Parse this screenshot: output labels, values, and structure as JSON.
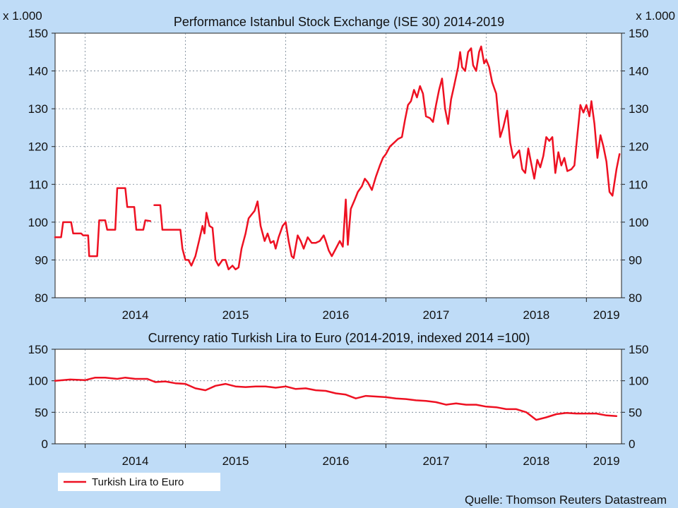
{
  "chart_data": [
    {
      "type": "line",
      "title": "Performance Istanbul Stock Exchange (ISE 30) 2014-2019",
      "unit_label_left": "x 1.000",
      "unit_label_right": "x 1.000",
      "ylim": [
        80,
        150
      ],
      "yticks": [
        "80",
        "90",
        "100",
        "110",
        "120",
        "130",
        "140",
        "150"
      ],
      "xticks": [
        "2014",
        "2015",
        "2016",
        "2017",
        "2018",
        "2019"
      ],
      "xlim": [
        2013.7,
        2019.35
      ],
      "grid": true,
      "color": "#ee1122",
      "series": [
        {
          "segments": [
            [
              [
                2013.7,
                96
              ],
              [
                2013.76,
                96
              ],
              [
                2013.78,
                100
              ],
              [
                2013.86,
                100
              ],
              [
                2013.88,
                97
              ],
              [
                2013.96,
                97
              ],
              [
                2013.98,
                96.5
              ],
              [
                2014.03,
                96.5
              ],
              [
                2014.04,
                91
              ],
              [
                2014.12,
                91
              ],
              [
                2014.14,
                100.5
              ],
              [
                2014.2,
                100.5
              ],
              [
                2014.22,
                98
              ],
              [
                2014.3,
                98
              ],
              [
                2014.32,
                109
              ],
              [
                2014.4,
                109
              ],
              [
                2014.42,
                104
              ],
              [
                2014.49,
                104
              ],
              [
                2014.51,
                98
              ],
              [
                2014.58,
                98
              ],
              [
                2014.6,
                100.5
              ],
              [
                2014.65,
                100.3
              ]
            ],
            [
              [
                2014.69,
                104.5
              ],
              [
                2014.75,
                104.5
              ],
              [
                2014.77,
                98
              ],
              [
                2014.95,
                98
              ],
              [
                2014.97,
                93
              ],
              [
                2015.0,
                90
              ],
              [
                2015.03,
                90
              ],
              [
                2015.06,
                88.5
              ],
              [
                2015.1,
                91
              ],
              [
                2015.14,
                95.5
              ],
              [
                2015.17,
                99
              ],
              [
                2015.19,
                97
              ],
              [
                2015.21,
                102.5
              ],
              [
                2015.24,
                99
              ],
              [
                2015.27,
                98.5
              ],
              [
                2015.3,
                90
              ],
              [
                2015.33,
                88.5
              ],
              [
                2015.37,
                90
              ],
              [
                2015.4,
                90
              ],
              [
                2015.43,
                87.5
              ],
              [
                2015.47,
                88.5
              ],
              [
                2015.5,
                87.5
              ],
              [
                2015.53,
                88
              ],
              [
                2015.56,
                93
              ],
              [
                2015.6,
                97
              ],
              [
                2015.63,
                101
              ],
              [
                2015.66,
                102
              ],
              [
                2015.69,
                103
              ],
              [
                2015.72,
                105.5
              ],
              [
                2015.75,
                99
              ],
              [
                2015.79,
                95
              ],
              [
                2015.82,
                97
              ],
              [
                2015.85,
                94.5
              ],
              [
                2015.88,
                95
              ],
              [
                2015.9,
                93
              ],
              [
                2015.93,
                96
              ],
              [
                2015.97,
                99
              ],
              [
                2016.0,
                100
              ],
              [
                2016.03,
                95
              ],
              [
                2016.06,
                91
              ],
              [
                2016.08,
                90.5
              ],
              [
                2016.12,
                96.5
              ],
              [
                2016.15,
                95
              ],
              [
                2016.18,
                93
              ],
              [
                2016.22,
                96
              ],
              [
                2016.26,
                94.5
              ],
              [
                2016.3,
                94.5
              ],
              [
                2016.34,
                95
              ],
              [
                2016.38,
                96.5
              ],
              [
                2016.4,
                95
              ],
              [
                2016.43,
                92.5
              ],
              [
                2016.46,
                91
              ],
              [
                2016.5,
                93
              ],
              [
                2016.54,
                95
              ],
              [
                2016.57,
                93.5
              ],
              [
                2016.6,
                106
              ],
              [
                2016.62,
                94
              ],
              [
                2016.65,
                103.5
              ],
              [
                2016.69,
                106
              ],
              [
                2016.72,
                108
              ],
              [
                2016.76,
                109.5
              ],
              [
                2016.79,
                111.5
              ],
              [
                2016.82,
                110.5
              ],
              [
                2016.86,
                108.5
              ],
              [
                2016.9,
                112
              ],
              [
                2016.94,
                115
              ],
              [
                2016.97,
                117
              ],
              [
                2017.0,
                118
              ],
              [
                2017.04,
                120
              ],
              [
                2017.08,
                121
              ],
              [
                2017.12,
                122
              ],
              [
                2017.16,
                122.5
              ],
              [
                2017.19,
                127
              ],
              [
                2017.22,
                131
              ],
              [
                2017.25,
                132
              ],
              [
                2017.28,
                135
              ],
              [
                2017.31,
                133
              ],
              [
                2017.34,
                136
              ],
              [
                2017.37,
                134
              ],
              [
                2017.4,
                128
              ],
              [
                2017.44,
                127.5
              ],
              [
                2017.47,
                126.5
              ],
              [
                2017.5,
                131
              ],
              [
                2017.53,
                135
              ],
              [
                2017.56,
                138
              ],
              [
                2017.59,
                130
              ],
              [
                2017.62,
                126
              ],
              [
                2017.65,
                132.5
              ],
              [
                2017.68,
                136
              ],
              [
                2017.72,
                141
              ],
              [
                2017.74,
                145
              ],
              [
                2017.76,
                141
              ],
              [
                2017.79,
                140
              ],
              [
                2017.82,
                145
              ],
              [
                2017.85,
                146
              ],
              [
                2017.87,
                141.5
              ],
              [
                2017.9,
                140
              ],
              [
                2017.93,
                145
              ],
              [
                2017.95,
                146.5
              ],
              [
                2017.98,
                142
              ],
              [
                2018.0,
                143
              ],
              [
                2018.03,
                141
              ],
              [
                2018.06,
                137
              ],
              [
                2018.1,
                134
              ],
              [
                2018.14,
                122.5
              ],
              [
                2018.17,
                125
              ],
              [
                2018.21,
                129.5
              ],
              [
                2018.24,
                121
              ],
              [
                2018.27,
                117
              ],
              [
                2018.3,
                118
              ],
              [
                2018.33,
                119
              ],
              [
                2018.36,
                114
              ],
              [
                2018.39,
                113
              ],
              [
                2018.42,
                119.5
              ],
              [
                2018.45,
                115.5
              ],
              [
                2018.48,
                111.5
              ],
              [
                2018.51,
                116.5
              ],
              [
                2018.54,
                114.5
              ],
              [
                2018.57,
                117.5
              ],
              [
                2018.6,
                122.5
              ],
              [
                2018.63,
                121.5
              ],
              [
                2018.66,
                122.5
              ],
              [
                2018.69,
                113
              ],
              [
                2018.72,
                118.5
              ],
              [
                2018.75,
                115
              ],
              [
                2018.78,
                117
              ],
              [
                2018.81,
                113.5
              ],
              [
                2018.85,
                114
              ],
              [
                2018.88,
                115
              ],
              [
                2018.91,
                123
              ],
              [
                2018.94,
                131
              ],
              [
                2018.97,
                129
              ],
              [
                2019.0,
                131
              ],
              [
                2019.03,
                128
              ],
              [
                2019.05,
                132
              ],
              [
                2019.08,
                126
              ],
              [
                2019.11,
                117
              ],
              [
                2019.14,
                123
              ],
              [
                2019.17,
                120
              ],
              [
                2019.2,
                116
              ],
              [
                2019.23,
                108
              ],
              [
                2019.26,
                107
              ],
              [
                2019.3,
                114
              ],
              [
                2019.33,
                118
              ]
            ]
          ]
        }
      ]
    },
    {
      "type": "line",
      "title": "Currency ratio Turkish Lira to Euro (2014-2019, indexed 2014 =100)",
      "ylim": [
        0,
        150
      ],
      "yticks": [
        "0",
        "50",
        "100",
        "150"
      ],
      "xticks": [
        "2014",
        "2015",
        "2016",
        "2017",
        "2018",
        "2019"
      ],
      "xlim": [
        2013.7,
        2019.35
      ],
      "grid": true,
      "color": "#ee1122",
      "legend": "bottom-left",
      "series": [
        {
          "name": "Turkish Lira to Euro",
          "segments": [
            [
              [
                2013.7,
                100
              ],
              [
                2013.85,
                102
              ],
              [
                2014.0,
                101
              ],
              [
                2014.1,
                105
              ],
              [
                2014.2,
                105
              ],
              [
                2014.32,
                103
              ],
              [
                2014.4,
                105
              ],
              [
                2014.5,
                103
              ],
              [
                2014.62,
                103
              ],
              [
                2014.7,
                98
              ],
              [
                2014.8,
                99
              ],
              [
                2014.9,
                96
              ],
              [
                2015.0,
                95
              ],
              [
                2015.1,
                88
              ],
              [
                2015.2,
                85
              ],
              [
                2015.3,
                92
              ],
              [
                2015.4,
                95
              ],
              [
                2015.5,
                91
              ],
              [
                2015.6,
                90
              ],
              [
                2015.7,
                91
              ],
              [
                2015.8,
                91
              ],
              [
                2015.9,
                89
              ],
              [
                2016.0,
                91
              ],
              [
                2016.1,
                87
              ],
              [
                2016.2,
                88
              ],
              [
                2016.3,
                85
              ],
              [
                2016.4,
                84
              ],
              [
                2016.5,
                80
              ],
              [
                2016.6,
                78
              ],
              [
                2016.7,
                72
              ],
              [
                2016.8,
                76
              ],
              [
                2016.9,
                75
              ],
              [
                2017.0,
                74
              ],
              [
                2017.1,
                72
              ],
              [
                2017.2,
                71
              ],
              [
                2017.3,
                69
              ],
              [
                2017.4,
                68
              ],
              [
                2017.5,
                66
              ],
              [
                2017.6,
                62
              ],
              [
                2017.7,
                64
              ],
              [
                2017.8,
                62
              ],
              [
                2017.9,
                62
              ],
              [
                2018.0,
                59
              ],
              [
                2018.1,
                58
              ],
              [
                2018.2,
                55
              ],
              [
                2018.3,
                55
              ],
              [
                2018.4,
                50
              ],
              [
                2018.5,
                38
              ],
              [
                2018.6,
                42
              ],
              [
                2018.7,
                47
              ],
              [
                2018.8,
                49
              ],
              [
                2018.9,
                48
              ],
              [
                2019.0,
                48
              ],
              [
                2019.1,
                48
              ],
              [
                2019.2,
                45
              ],
              [
                2019.3,
                44
              ]
            ]
          ]
        }
      ]
    }
  ],
  "source": "Quelle: Thomson Reuters Datastream"
}
